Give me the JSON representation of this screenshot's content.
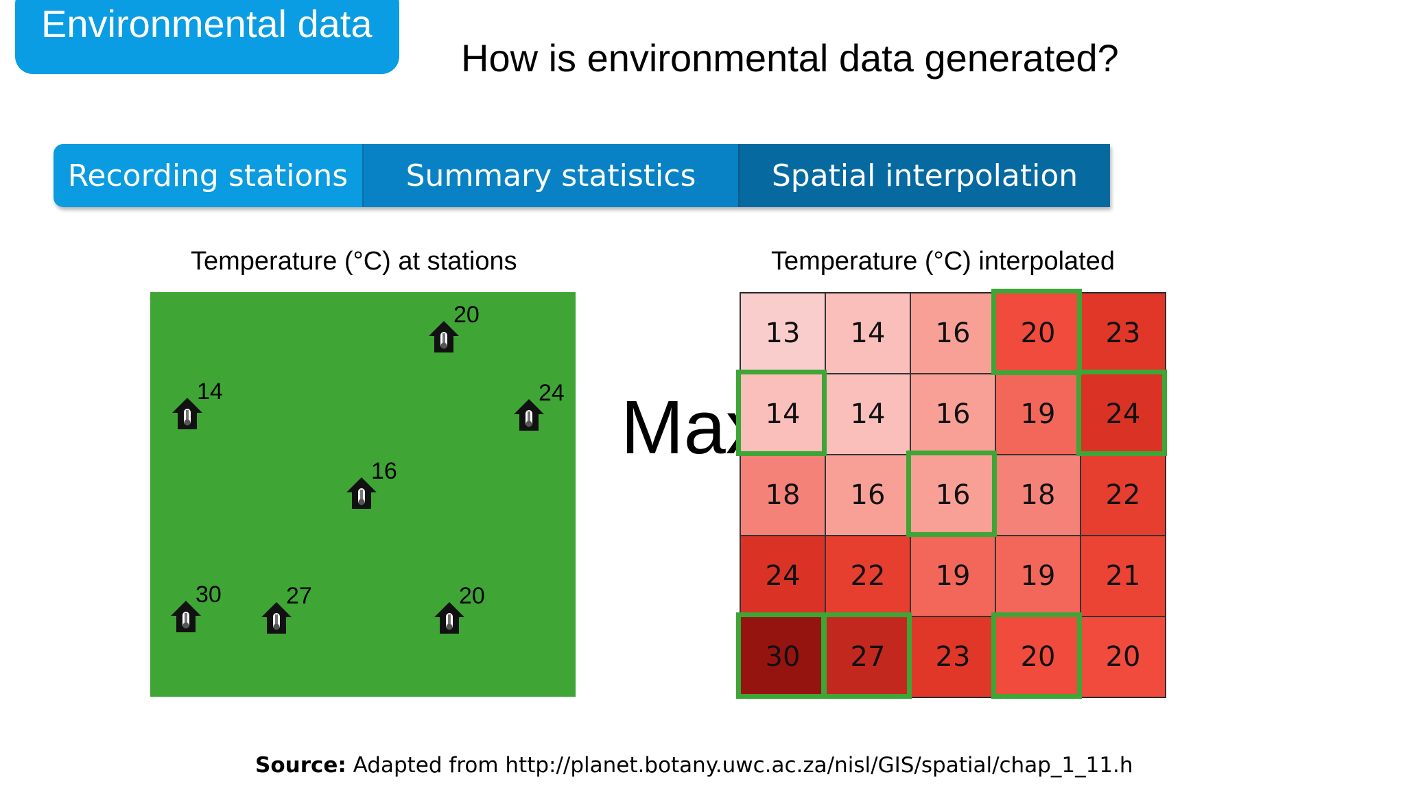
{
  "section_tag": "Environmental data",
  "title": "How is environmental data generated?",
  "tabs": [
    "Recording stations",
    "Summary statistics",
    "Spatial interpolation"
  ],
  "left_panel": {
    "title": "Temperature (°C) at stations",
    "stations": [
      {
        "value": "20"
      },
      {
        "value": "14"
      },
      {
        "value": "24"
      },
      {
        "value": "16"
      },
      {
        "value": "30"
      },
      {
        "value": "27"
      },
      {
        "value": "20"
      }
    ]
  },
  "overlay_text": "Max",
  "right_panel": {
    "title": "Temperature (°C) interpolated",
    "grid": [
      [
        13,
        14,
        16,
        20,
        23
      ],
      [
        14,
        14,
        16,
        19,
        24
      ],
      [
        18,
        16,
        16,
        18,
        22
      ],
      [
        24,
        22,
        19,
        19,
        21
      ],
      [
        30,
        27,
        23,
        20,
        20
      ]
    ],
    "highlighted_cells": [
      [
        0,
        3
      ],
      [
        1,
        0
      ],
      [
        1,
        4
      ],
      [
        2,
        2
      ],
      [
        4,
        0
      ],
      [
        4,
        1
      ],
      [
        4,
        3
      ]
    ],
    "highlight_color": "#3ea537"
  },
  "source": {
    "label": "Source:",
    "text": " Adapted from http://planet.botany.uwc.ac.za/nisl/GIS/spatial/chap_1_11.h"
  },
  "colors": {
    "section_tag": "#0a9de3",
    "map_green": "#3fa636"
  }
}
